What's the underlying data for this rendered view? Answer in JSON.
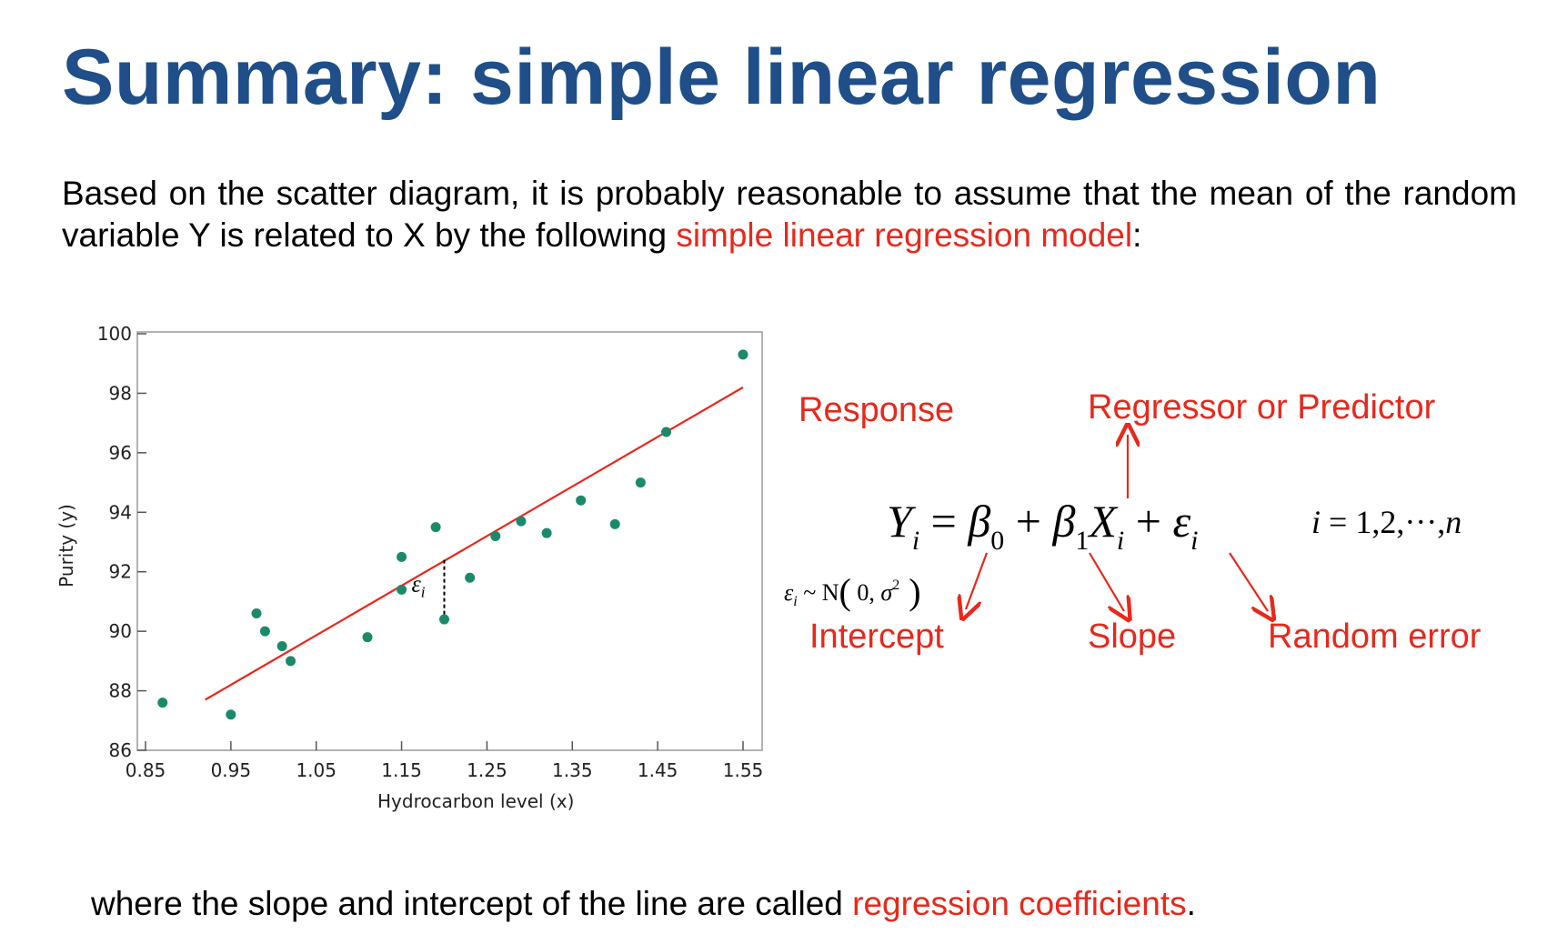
{
  "title": "Summary: simple linear regression",
  "intro": {
    "text_before": "Based on the scatter diagram, it is probably reasonable to assume that the mean of the random variable Y is related to X by the following ",
    "highlight": "simple linear regression model",
    "text_after": ":"
  },
  "footer": {
    "text_before": "where the slope and intercept of the line are called ",
    "highlight": "regression coefficients",
    "text_after": "."
  },
  "annotations": {
    "response": "Response",
    "regressor": "Regressor or Predictor",
    "intercept": "Intercept",
    "slope": "Slope",
    "random_error": "Random error"
  },
  "equation": {
    "main": "Y_i = β_0 + β_1 X_i + ε_i",
    "index_range": "i = 1,2,···,n",
    "error_dist": "ε_i ~ N(0, σ²)"
  },
  "colors": {
    "title": "#1f4e89",
    "highlight": "#e8281c",
    "points": "#1a8a6a",
    "fit_line": "#e8281c"
  },
  "chart_data": {
    "type": "scatter",
    "title": "",
    "xlabel": "Hydrocarbon level (x)",
    "ylabel": "Purity (y)",
    "xlim": [
      0.85,
      1.55
    ],
    "ylim": [
      86,
      100
    ],
    "xticks": [
      0.85,
      0.95,
      1.05,
      1.15,
      1.25,
      1.35,
      1.45,
      1.55
    ],
    "yticks": [
      86,
      88,
      90,
      92,
      94,
      96,
      98,
      100
    ],
    "xtick_labels": [
      "0.85",
      "0.95",
      "1.05",
      "1.15",
      "1.25",
      "1.35",
      "1.45",
      "1.55"
    ],
    "ytick_labels": [
      "86",
      "88",
      "90",
      "92",
      "94",
      "96",
      "98",
      "100"
    ],
    "points": [
      {
        "x": 0.87,
        "y": 87.6
      },
      {
        "x": 0.95,
        "y": 87.2
      },
      {
        "x": 0.98,
        "y": 90.6
      },
      {
        "x": 0.99,
        "y": 90.0
      },
      {
        "x": 1.01,
        "y": 89.5
      },
      {
        "x": 1.02,
        "y": 89.0
      },
      {
        "x": 1.11,
        "y": 89.8
      },
      {
        "x": 1.15,
        "y": 92.5
      },
      {
        "x": 1.15,
        "y": 91.4
      },
      {
        "x": 1.19,
        "y": 93.5
      },
      {
        "x": 1.2,
        "y": 90.4
      },
      {
        "x": 1.23,
        "y": 91.8
      },
      {
        "x": 1.26,
        "y": 93.2
      },
      {
        "x": 1.29,
        "y": 93.7
      },
      {
        "x": 1.32,
        "y": 93.3
      },
      {
        "x": 1.36,
        "y": 94.4
      },
      {
        "x": 1.4,
        "y": 93.6
      },
      {
        "x": 1.43,
        "y": 95.0
      },
      {
        "x": 1.46,
        "y": 96.7
      },
      {
        "x": 1.55,
        "y": 99.3
      }
    ],
    "fit_line": {
      "x": [
        0.92,
        1.55
      ],
      "y": [
        87.7,
        98.2
      ]
    },
    "residual_marker": {
      "x": 1.2,
      "y_point": 90.4,
      "y_line": 92.4,
      "label": "ε_i"
    },
    "grid": false,
    "legend": "none"
  }
}
